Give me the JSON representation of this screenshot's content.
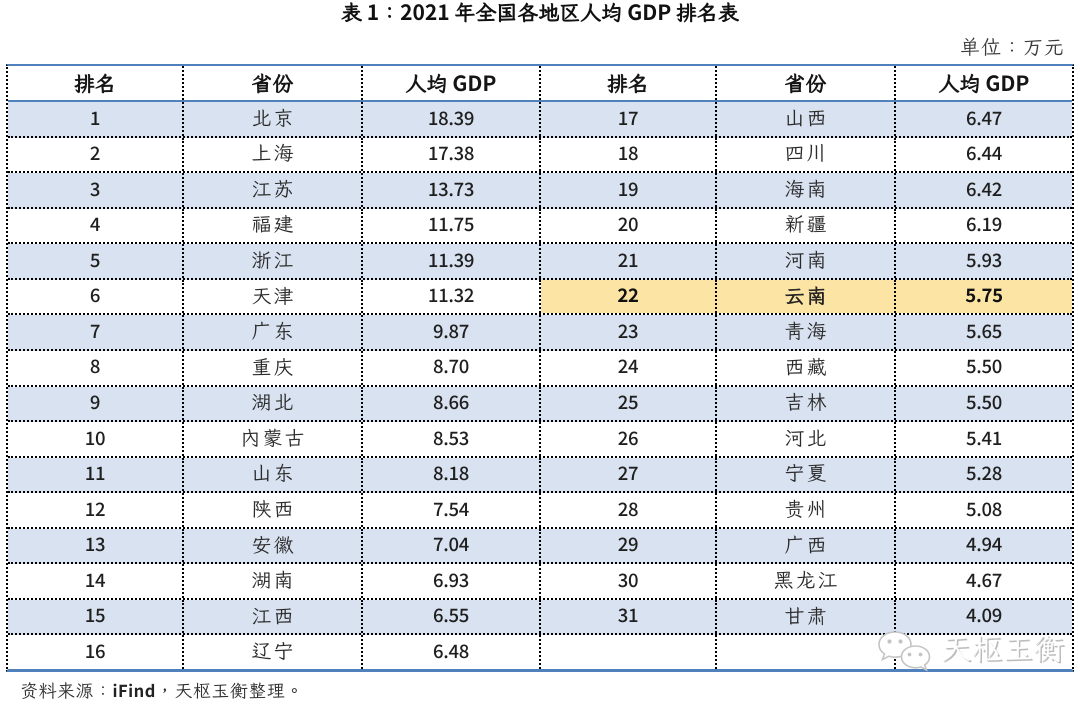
{
  "title": "表 1：2021 年全国各地区人均 GDP 排名表",
  "unit_label": "单位：万元",
  "source_note": {
    "prefix": "资料来源：",
    "brand": "iFind",
    "suffix": "，天枢玉衡整理。"
  },
  "watermark": {
    "text": "天枢玉衡",
    "icon": "wechat-chat-bubbles"
  },
  "colors": {
    "accent_blue_line": "#4f81bd",
    "row_stripe_blue": "#d9e2f0",
    "highlight_yellow": "#fce5a4",
    "border_dotted": "#000000",
    "text_dark": "#1f1f1f",
    "watermark_gray": "#c0c0c0"
  },
  "table": {
    "headers": [
      "排名",
      "省份",
      "人均 GDP",
      "排名",
      "省份",
      "人均 GDP"
    ],
    "rows": [
      [
        "1",
        "北京",
        "18.39",
        "17",
        "山西",
        "6.47"
      ],
      [
        "2",
        "上海",
        "17.38",
        "18",
        "四川",
        "6.44"
      ],
      [
        "3",
        "江苏",
        "13.73",
        "19",
        "海南",
        "6.42"
      ],
      [
        "4",
        "福建",
        "11.75",
        "20",
        "新疆",
        "6.19"
      ],
      [
        "5",
        "浙江",
        "11.39",
        "21",
        "河南",
        "5.93"
      ],
      [
        "6",
        "天津",
        "11.32",
        "22",
        "云南",
        "5.75"
      ],
      [
        "7",
        "广东",
        "9.87",
        "23",
        "青海",
        "5.65"
      ],
      [
        "8",
        "重庆",
        "8.70",
        "24",
        "西藏",
        "5.50"
      ],
      [
        "9",
        "湖北",
        "8.66",
        "25",
        "吉林",
        "5.50"
      ],
      [
        "10",
        "内蒙古",
        "8.53",
        "26",
        "河北",
        "5.41"
      ],
      [
        "11",
        "山东",
        "8.18",
        "27",
        "宁夏",
        "5.28"
      ],
      [
        "12",
        "陕西",
        "7.54",
        "28",
        "贵州",
        "5.08"
      ],
      [
        "13",
        "安徽",
        "7.04",
        "29",
        "广西",
        "4.94"
      ],
      [
        "14",
        "湖南",
        "6.93",
        "30",
        "黑龙江",
        "4.67"
      ],
      [
        "15",
        "江西",
        "6.55",
        "31",
        "甘肃",
        "4.09"
      ],
      [
        "16",
        "辽宁",
        "6.48",
        "",
        "",
        ""
      ]
    ],
    "highlight": {
      "row_index": 5,
      "columns": [
        3,
        4,
        5
      ],
      "rank": "22",
      "province": "云南",
      "value": "5.75"
    }
  }
}
